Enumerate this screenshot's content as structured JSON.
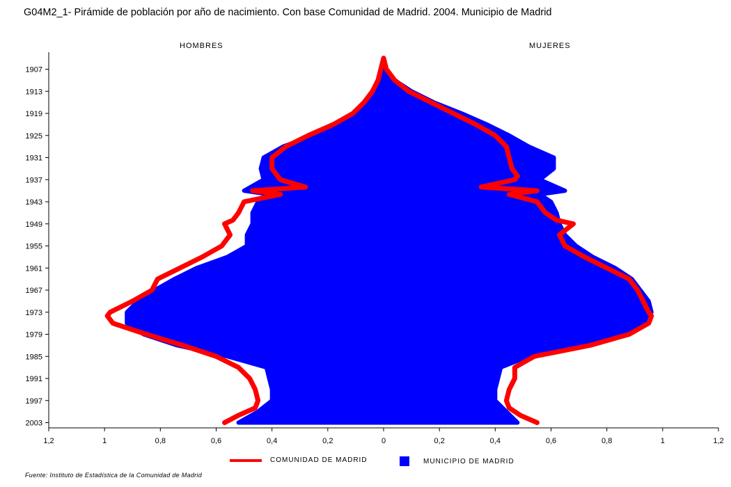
{
  "title": "G04M2_1- Pirámide de población por año de nacimiento. Con base Comunidad de Madrid.  2004. Municipio de Madrid",
  "source": "Fuente: Instituto de Estadística de la Comunidad de Madrid",
  "chart_data": {
    "type": "population-pyramid",
    "left_label": "HOMBRES",
    "right_label": "MUJERES",
    "y_ticks": [
      "1907",
      "1913",
      "1919",
      "1925",
      "1931",
      "1937",
      "1943",
      "1949",
      "1955",
      "1961",
      "1967",
      "1973",
      "1979",
      "1985",
      "1991",
      "1997",
      "2003"
    ],
    "x_tick_labels": [
      "1,2",
      "1",
      "0,8",
      "0,6",
      "0,4",
      "0,2",
      "0",
      "0,2",
      "0,4",
      "0,6",
      "0,8",
      "1",
      "1,2"
    ],
    "xlim": [
      -1.2,
      1.2
    ],
    "ylim": [
      1904,
      2003
    ],
    "series": [
      {
        "name": "COMUNIDAD DE MADRID",
        "kind": "line",
        "color": "#ff0000",
        "years": [
          1904,
          1907,
          1910,
          1913,
          1916,
          1919,
          1922,
          1925,
          1928,
          1931,
          1934,
          1936,
          1937,
          1939,
          1940,
          1941,
          1943,
          1946,
          1948,
          1949,
          1952,
          1955,
          1958,
          1961,
          1964,
          1967,
          1970,
          1973,
          1974,
          1976,
          1979,
          1982,
          1985,
          1988,
          1991,
          1994,
          1997,
          1999,
          2001,
          2003
        ],
        "men": [
          0.0,
          0.01,
          0.02,
          0.04,
          0.07,
          0.11,
          0.18,
          0.27,
          0.35,
          0.4,
          0.4,
          0.38,
          0.37,
          0.28,
          0.47,
          0.37,
          0.5,
          0.52,
          0.54,
          0.57,
          0.55,
          0.58,
          0.65,
          0.73,
          0.81,
          0.83,
          0.9,
          0.98,
          0.99,
          0.97,
          0.85,
          0.72,
          0.6,
          0.52,
          0.48,
          0.46,
          0.45,
          0.46,
          0.52,
          0.57
        ],
        "women": [
          0.0,
          0.01,
          0.04,
          0.09,
          0.17,
          0.25,
          0.33,
          0.4,
          0.44,
          0.45,
          0.46,
          0.48,
          0.47,
          0.35,
          0.55,
          0.45,
          0.55,
          0.58,
          0.62,
          0.68,
          0.63,
          0.65,
          0.72,
          0.8,
          0.88,
          0.91,
          0.93,
          0.95,
          0.96,
          0.95,
          0.88,
          0.74,
          0.54,
          0.47,
          0.47,
          0.45,
          0.44,
          0.45,
          0.49,
          0.55
        ]
      },
      {
        "name": "MUNICIPIO DE MADRID",
        "kind": "area",
        "color": "#0000ff",
        "years": [
          1904,
          1907,
          1910,
          1913,
          1916,
          1919,
          1922,
          1925,
          1928,
          1931,
          1934,
          1937,
          1940,
          1941,
          1943,
          1946,
          1949,
          1952,
          1955,
          1958,
          1961,
          1964,
          1967,
          1970,
          1973,
          1976,
          1979,
          1982,
          1985,
          1988,
          1991,
          1994,
          1997,
          2000,
          2003
        ],
        "men": [
          0.0,
          0.01,
          0.02,
          0.04,
          0.06,
          0.1,
          0.17,
          0.25,
          0.36,
          0.43,
          0.44,
          0.43,
          0.5,
          0.41,
          0.45,
          0.47,
          0.47,
          0.49,
          0.49,
          0.56,
          0.67,
          0.75,
          0.82,
          0.88,
          0.92,
          0.92,
          0.86,
          0.74,
          0.56,
          0.42,
          0.41,
          0.4,
          0.4,
          0.45,
          0.52
        ],
        "women": [
          0.0,
          0.01,
          0.04,
          0.1,
          0.18,
          0.28,
          0.37,
          0.45,
          0.52,
          0.61,
          0.61,
          0.56,
          0.65,
          0.56,
          0.6,
          0.62,
          0.63,
          0.65,
          0.69,
          0.75,
          0.83,
          0.89,
          0.92,
          0.95,
          0.96,
          0.93,
          0.86,
          0.72,
          0.52,
          0.42,
          0.41,
          0.4,
          0.4,
          0.44,
          0.48
        ]
      }
    ]
  }
}
